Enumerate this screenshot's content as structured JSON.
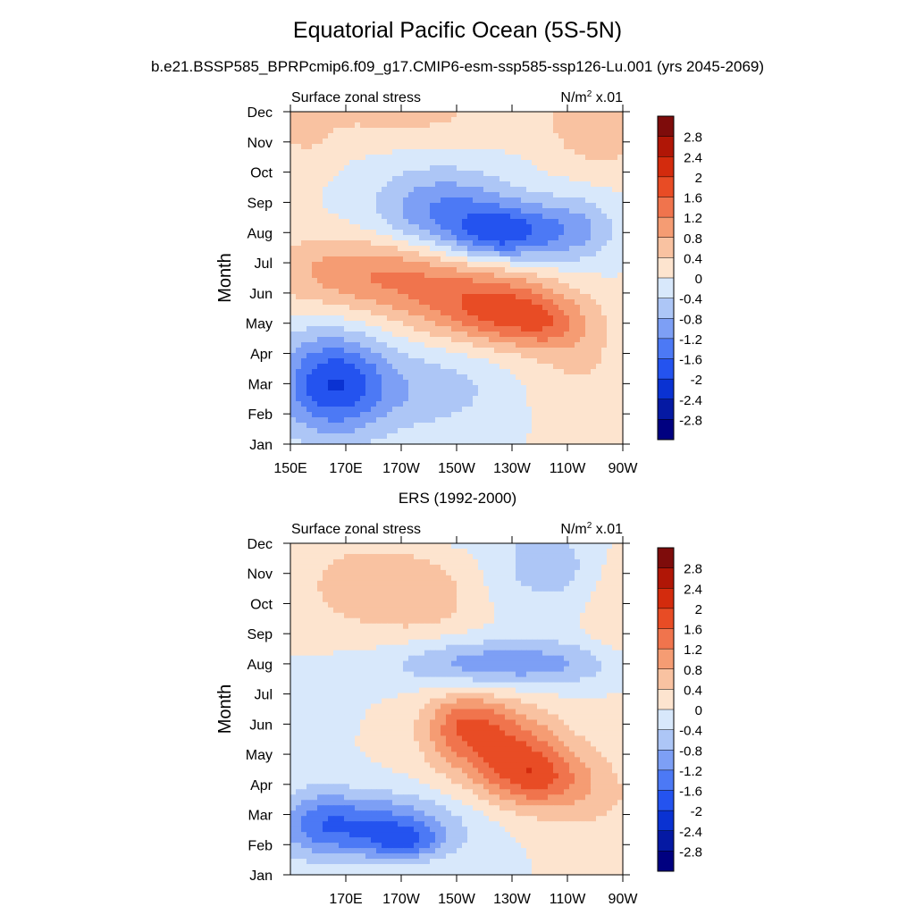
{
  "title": "Equatorial Pacific Ocean (5S-5N)",
  "subtitle": "b.e21.BSSP585_BPRPcmip6.f09_g17.CMIP6-esm-ssp585-ssp126-Lu.001 (yrs 2045-2069)",
  "chart_data": [
    {
      "type": "heatmap",
      "panel": "model",
      "header_left": "Surface zonal stress",
      "unit_prefix": "N/m",
      "unit_sup": "2",
      "unit_suffix": " x.01",
      "ylabel": "Month",
      "months": [
        "Jan",
        "Feb",
        "Mar",
        "Apr",
        "May",
        "Jun",
        "Jul",
        "Aug",
        "Sep",
        "Oct",
        "Nov",
        "Dec"
      ],
      "x_ticks": [
        "150E",
        "170E",
        "170W",
        "150W",
        "130W",
        "110W",
        "90W"
      ],
      "x_tick_lons": [
        150,
        170,
        190,
        210,
        230,
        250,
        270
      ],
      "x_range": [
        150,
        270
      ],
      "blobs": [
        {
          "lon": 165,
          "mon": 2.0,
          "sx": 14,
          "sy": 1.2,
          "a": -1.9
        },
        {
          "lon": 200,
          "mon": 1.8,
          "sx": 20,
          "sy": 1.0,
          "a": -0.6
        },
        {
          "lon": 255,
          "mon": 2.5,
          "sx": 14,
          "sy": 1.3,
          "a": 0.4
        },
        {
          "lon": 175,
          "mon": 5.7,
          "sx": 25,
          "sy": 0.9,
          "a": 1.0
        },
        {
          "lon": 210,
          "mon": 5.0,
          "sx": 22,
          "sy": 1.0,
          "a": 0.9
        },
        {
          "lon": 230,
          "mon": 4.3,
          "sx": 16,
          "sy": 0.75,
          "a": 1.3
        },
        {
          "lon": 245,
          "mon": 3.8,
          "sx": 10,
          "sy": 0.6,
          "a": 0.5
        },
        {
          "lon": 205,
          "mon": 7.7,
          "sx": 18,
          "sy": 1.0,
          "a": -1.2
        },
        {
          "lon": 232,
          "mon": 7.0,
          "sx": 16,
          "sy": 0.7,
          "a": -1.4
        },
        {
          "lon": 222,
          "mon": 6.8,
          "sx": 9,
          "sy": 0.5,
          "a": -0.4
        },
        {
          "lon": 255,
          "mon": 7.2,
          "sx": 10,
          "sy": 0.9,
          "a": -0.5
        },
        {
          "lon": 190,
          "mon": 10.9,
          "sx": 30,
          "sy": 0.7,
          "a": 0.5
        },
        {
          "lon": 262,
          "mon": 10.6,
          "sx": 14,
          "sy": 1.2,
          "a": 0.7
        },
        {
          "lon": 155,
          "mon": 10.2,
          "sx": 8,
          "sy": 1.0,
          "a": 0.35
        }
      ]
    },
    {
      "type": "heatmap",
      "panel": "observations",
      "panel_title": "ERS (1992-2000)",
      "header_left": "Surface zonal stress",
      "unit_prefix": "N/m",
      "unit_sup": "2",
      "unit_suffix": " x.01",
      "ylabel": "Month",
      "months": [
        "Jan",
        "Feb",
        "Mar",
        "Apr",
        "May",
        "Jun",
        "Jul",
        "Aug",
        "Sep",
        "Oct",
        "Nov",
        "Dec"
      ],
      "x_ticks": [
        "170E",
        "170W",
        "150W",
        "130W",
        "110W",
        "90W"
      ],
      "x_tick_lons": [
        170,
        190,
        210,
        230,
        250,
        270
      ],
      "x_range": [
        150,
        270
      ],
      "blobs": [
        {
          "lon": 178,
          "mon": 1.6,
          "sx": 22,
          "sy": 0.75,
          "a": -1.5
        },
        {
          "lon": 192,
          "mon": 1.1,
          "sx": 9,
          "sy": 0.4,
          "a": -0.9
        },
        {
          "lon": 160,
          "mon": 1.8,
          "sx": 9,
          "sy": 0.9,
          "a": -0.5
        },
        {
          "lon": 225,
          "mon": 4.3,
          "sx": 16,
          "sy": 1.0,
          "a": 1.4
        },
        {
          "lon": 238,
          "mon": 3.2,
          "sx": 12,
          "sy": 0.75,
          "a": 1.2
        },
        {
          "lon": 212,
          "mon": 5.1,
          "sx": 10,
          "sy": 0.7,
          "a": 0.9
        },
        {
          "lon": 258,
          "mon": 2.7,
          "sx": 14,
          "sy": 1.0,
          "a": 0.5
        },
        {
          "lon": 228,
          "mon": 7.0,
          "sx": 30,
          "sy": 0.55,
          "a": -1.1
        },
        {
          "lon": 210,
          "mon": 11.6,
          "sx": 18,
          "sy": 0.35,
          "a": -0.9
        },
        {
          "lon": 243,
          "mon": 10.2,
          "sx": 15,
          "sy": 1.0,
          "a": -0.6
        },
        {
          "lon": 178,
          "mon": 9.6,
          "sx": 22,
          "sy": 1.4,
          "a": 0.55
        },
        {
          "lon": 200,
          "mon": 9.2,
          "sx": 12,
          "sy": 0.8,
          "a": 0.4
        },
        {
          "lon": 160,
          "mon": 6.0,
          "sx": 8,
          "sy": 0.7,
          "a": -0.25
        },
        {
          "lon": 268,
          "mon": 8.8,
          "sx": 8,
          "sy": 1.5,
          "a": 0.45
        }
      ]
    }
  ],
  "colorbar": {
    "labels": [
      "2.8",
      "2.4",
      "2",
      "1.6",
      "1.2",
      "0.8",
      "0.4",
      "0",
      "-0.4",
      "-0.8",
      "-1.2",
      "-1.6",
      "-2",
      "-2.4",
      "-2.8"
    ],
    "levels": [
      -2.8,
      -2.4,
      -2.0,
      -1.6,
      -1.2,
      -0.8,
      -0.4,
      0,
      0.4,
      0.8,
      1.2,
      1.6,
      2.0,
      2.4,
      2.8
    ],
    "colors": [
      "#000080",
      "#0519a3",
      "#0a32d2",
      "#2453ef",
      "#4c79f5",
      "#7d9ff5",
      "#adc6f6",
      "#d8e8fb",
      "#fde4cf",
      "#f9c2a1",
      "#f59c73",
      "#f0744d",
      "#e84c25",
      "#d32b0d",
      "#b01606",
      "#7e0c0b"
    ]
  }
}
